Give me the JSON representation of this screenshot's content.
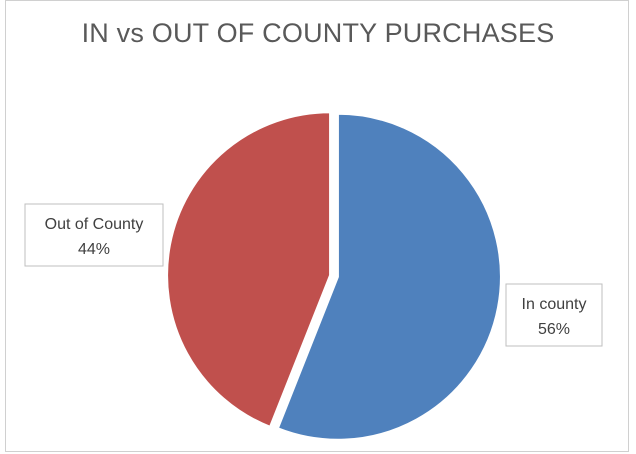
{
  "chart_data": {
    "type": "pie",
    "title": "IN vs OUT OF COUNTY PURCHASES",
    "slices": [
      {
        "label": "In county",
        "value": 56,
        "value_label": "56%",
        "color": "#4f81bd"
      },
      {
        "label": "Out of County",
        "value": 44,
        "value_label": "44%",
        "color": "#c0504d"
      }
    ],
    "start_angle_deg": 0,
    "direction": "clockwise",
    "labels": "callouts with category name and percentage"
  }
}
